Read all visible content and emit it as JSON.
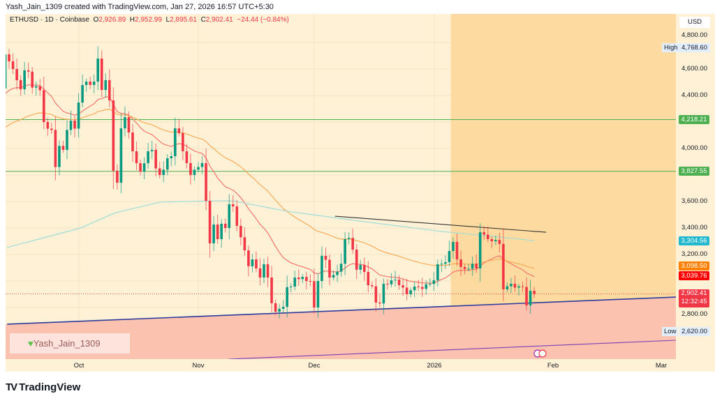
{
  "credit": "Yash_Jain_1309 created with TradingView.com, Jan 27, 2026 16:57 UTC+5:30",
  "legend": {
    "symbol": "ETHUSD · 1D · Coinbase",
    "open_label": "O",
    "open": "2,926.89",
    "high_label": "H",
    "high": "2,952.99",
    "low_label": "L",
    "low": "2,895.61",
    "close_label": "C",
    "close": "2,902.41",
    "change": "−24.44 (−0.84%)"
  },
  "price_axis": {
    "currency": "USD",
    "ticks": [
      "4,800.00",
      "4,600.00",
      "4,400.00",
      "4,000.00",
      "3,600.00",
      "3,400.00",
      "3,200.00",
      "2,800.00"
    ],
    "high_marker": {
      "label": "High",
      "value": "4,768.60"
    },
    "low_marker": {
      "label": "Low",
      "value": "2,620.00"
    },
    "labels": [
      {
        "value": "4,218.21",
        "color": "#4caf50"
      },
      {
        "value": "3,827.55",
        "color": "#4caf50"
      },
      {
        "value": "3,304.56",
        "color": "#22b8cf"
      },
      {
        "value": "3,098.50",
        "color": "#ff8000"
      },
      {
        "value": "3,039.76",
        "color": "#ff0000"
      }
    ],
    "last_price": {
      "value": "2,902.41",
      "countdown": "12:32:45",
      "color": "#f23645"
    }
  },
  "time_axis": [
    "Oct",
    "Nov",
    "Dec",
    "2026",
    "Feb",
    "Mar"
  ],
  "watermark": {
    "icon": "green-heart-icon",
    "text": "Yash_Jain_1309"
  },
  "brand": "TradingView",
  "colors": {
    "up": "#089981",
    "down": "#f23645",
    "background": "#fef1d6",
    "highlight_zone": "#fddba0",
    "support_zone": "#fbc2b0"
  },
  "chart_data": {
    "type": "candlestick",
    "interval": "1D",
    "first_open": 4453,
    "closes": [
      4711,
      4658,
      4600,
      4516,
      4447,
      4590,
      4580,
      4460,
      4470,
      4440,
      4200,
      4150,
      4140,
      3860,
      4020,
      3990,
      4140,
      4210,
      4150,
      4347,
      4479,
      4505,
      4480,
      4505,
      4679,
      4442,
      4516,
      4363,
      3832,
      3742,
      4152,
      4237,
      4121,
      3979,
      3889,
      3826,
      3889,
      3979,
      3990,
      3850,
      3800,
      3840,
      3926,
      3942,
      4152,
      4116,
      3979,
      3890,
      3800,
      3840,
      3860,
      3890,
      3605,
      3284,
      3426,
      3316,
      3432,
      3400,
      3579,
      3563,
      3416,
      3330,
      3231,
      3111,
      3163,
      3095,
      3026,
      3126,
      3026,
      2832,
      2768,
      2790,
      2805,
      2953,
      2958,
      3026,
      3014,
      3031,
      3000,
      2998,
      2800,
      3000,
      3190,
      3160,
      3026,
      3045,
      3070,
      3130,
      3316,
      3325,
      3237,
      3085,
      3120,
      3068,
      2968,
      2960,
      2837,
      2830,
      2979,
      2975,
      3005,
      3010,
      2968,
      2950,
      2900,
      2930,
      2958,
      2955,
      2940,
      2975,
      2978,
      3005,
      3126,
      3130,
      3142,
      3226,
      3295,
      3163,
      3105,
      3090,
      3092,
      3130,
      3095,
      3368,
      3350,
      3316,
      3300,
      3310,
      3280,
      2937,
      2960,
      2979,
      2950,
      2960,
      2955,
      2816,
      2926,
      2902.41
    ],
    "moving_averages": [
      {
        "kind": "EMA",
        "length": 20,
        "color": "#f7756b",
        "seed": 4384,
        "last": 3039.76
      },
      {
        "kind": "EMA",
        "length": 50,
        "color": "#ffaa55",
        "seed": 4137,
        "last": 3098.5
      },
      {
        "kind": "SMA",
        "length": 200,
        "color": "#9fdcd8",
        "points": [
          [
            0.5,
            3253
          ],
          [
            19.5,
            3400
          ],
          [
            28.5,
            3515
          ],
          [
            40,
            3595
          ],
          [
            53,
            3605
          ],
          [
            59,
            3605
          ],
          [
            73,
            3526
          ],
          [
            89,
            3463
          ],
          [
            113,
            3374
          ],
          [
            137,
            3304.56
          ]
        ]
      }
    ],
    "horizontal_levels": [
      4218.21,
      3827.55
    ],
    "trendlines": [
      {
        "name": "resistance",
        "color": "#333333",
        "from": [
          85.4,
          3489
        ],
        "to": [
          140.1,
          3368
        ]
      },
      {
        "name": "support",
        "color": "#2a3a9c",
        "from": [
          0.5,
          2674
        ],
        "to": [
          174,
          2879
        ]
      },
      {
        "name": "lower",
        "color": "#7b3fb5",
        "from": [
          57.9,
          2410
        ],
        "to": [
          174,
          2553
        ]
      }
    ],
    "highlight_zone_from_bar": 115.4,
    "high": 4768.6,
    "low": 2620.0,
    "last": 2902.41
  }
}
